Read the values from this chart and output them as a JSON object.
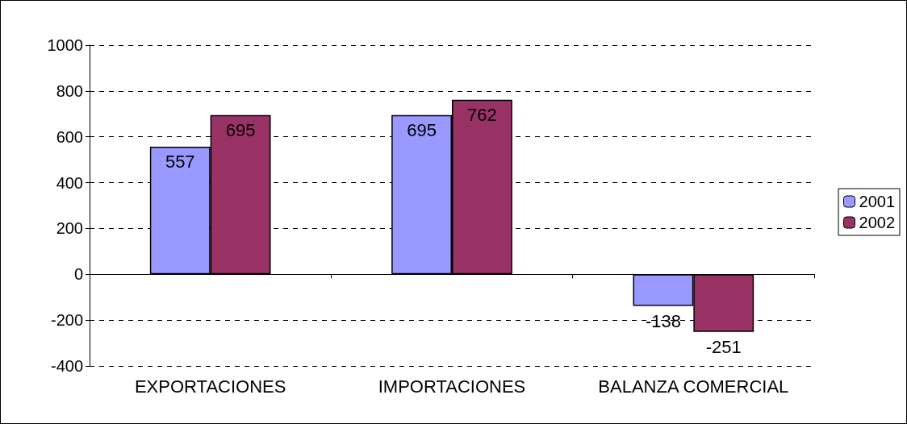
{
  "chart_data": {
    "type": "bar",
    "categories": [
      "EXPORTACIONES",
      "IMPORTACIONES",
      "BALANZA COMERCIAL"
    ],
    "series": [
      {
        "name": "2001",
        "color": "#9999ff",
        "values": [
          557,
          695,
          -138
        ]
      },
      {
        "name": "2002",
        "color": "#993366",
        "values": [
          695,
          762,
          -251
        ]
      }
    ],
    "ylim": [
      -400,
      1000
    ],
    "yticks": [
      -400,
      -200,
      0,
      200,
      400,
      600,
      800,
      1000
    ],
    "grid": "y",
    "legend": "right",
    "data_labels": true
  }
}
